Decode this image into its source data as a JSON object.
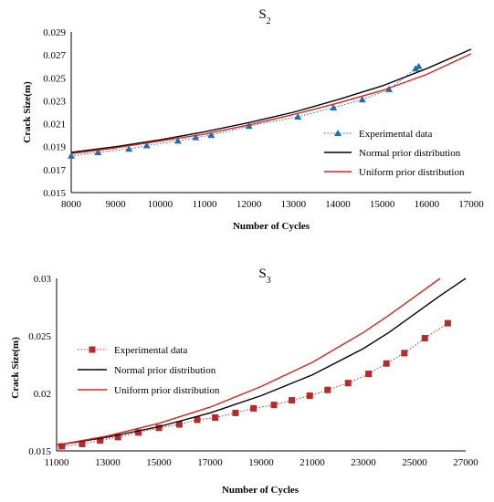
{
  "chart_data": [
    {
      "type": "line",
      "title": "S",
      "title_subscript": "2",
      "xlabel": "Number of Cycles",
      "ylabel": "Crack Size(m)",
      "xlim": [
        8000,
        17000
      ],
      "ylim": [
        0.015,
        0.029
      ],
      "xticks": [
        "8000",
        "9000",
        "10000",
        "11000",
        "12000",
        "13000",
        "14000",
        "15000",
        "16000",
        "17000"
      ],
      "yticks": [
        "0.015",
        "0.017",
        "0.019",
        "0.021",
        "0.023",
        "0.025",
        "0.027",
        "0.029"
      ],
      "legend_position": "middle-right",
      "series": [
        {
          "name": "Experimental data",
          "color": "#1f6fb5",
          "marker": "triangle",
          "line_style": "dotted",
          "x": [
            8000,
            8600,
            9300,
            9700,
            10400,
            10800,
            11150,
            12000,
            13100,
            13900,
            14550,
            15150,
            15750,
            15820
          ],
          "y": [
            0.0182,
            0.0185,
            0.0188,
            0.0191,
            0.0195,
            0.0198,
            0.02,
            0.0208,
            0.0216,
            0.0224,
            0.0231,
            0.024,
            0.0258,
            0.026
          ]
        },
        {
          "name": "Normal prior distribution",
          "color": "#000000",
          "marker": "none",
          "line_style": "solid",
          "x": [
            8000,
            9000,
            10000,
            11000,
            12000,
            13000,
            14000,
            15000,
            16000,
            17000
          ],
          "y": [
            0.0185,
            0.019,
            0.0196,
            0.0203,
            0.0211,
            0.022,
            0.0231,
            0.0243,
            0.0258,
            0.0275
          ]
        },
        {
          "name": "Uniform prior distribution",
          "color": "#e0201b",
          "marker": "none",
          "line_style": "solid",
          "x": [
            8000,
            9000,
            10000,
            11000,
            12000,
            13000,
            14000,
            15000,
            16000,
            17000
          ],
          "y": [
            0.0184,
            0.0189,
            0.0195,
            0.0201,
            0.0209,
            0.0218,
            0.0228,
            0.0239,
            0.0253,
            0.0271
          ]
        }
      ]
    },
    {
      "type": "line",
      "title": "S",
      "title_subscript": "3",
      "xlabel": "Number of Cycles",
      "ylabel": "Crack Size(m)",
      "xlim": [
        11000,
        27000
      ],
      "ylim": [
        0.015,
        0.03
      ],
      "xticks": [
        "11000",
        "13000",
        "15000",
        "17000",
        "19000",
        "21000",
        "23000",
        "25000",
        "27000"
      ],
      "yticks": [
        "0.015",
        "0.02",
        "0.025",
        "0.03"
      ],
      "legend_position": "middle-left",
      "series": [
        {
          "name": "Experimental data",
          "color": "#b52a2a",
          "marker": "square",
          "line_style": "dotted",
          "x": [
            11200,
            12000,
            12700,
            13400,
            14200,
            15000,
            15800,
            16500,
            17200,
            18000,
            18700,
            19500,
            20200,
            20900,
            21600,
            22400,
            23200,
            23900,
            24600,
            25400,
            26300
          ],
          "y": [
            0.0154,
            0.0156,
            0.0159,
            0.0162,
            0.0166,
            0.017,
            0.0173,
            0.0177,
            0.0179,
            0.0183,
            0.0187,
            0.019,
            0.0194,
            0.0198,
            0.0203,
            0.0209,
            0.0217,
            0.0226,
            0.0235,
            0.0248,
            0.0261
          ]
        },
        {
          "name": "Normal prior distribution",
          "color": "#000000",
          "marker": "none",
          "line_style": "solid",
          "x": [
            11000,
            13000,
            15000,
            17000,
            19000,
            21000,
            23000,
            24000,
            25000,
            26000,
            27000
          ],
          "y": [
            0.0155,
            0.0162,
            0.0171,
            0.0183,
            0.0198,
            0.0216,
            0.0239,
            0.0253,
            0.0269,
            0.0285,
            0.03
          ]
        },
        {
          "name": "Uniform prior distribution",
          "color": "#e0201b",
          "marker": "none",
          "line_style": "solid",
          "x": [
            11000,
            13000,
            15000,
            17000,
            19000,
            21000,
            23000,
            24000,
            25000,
            26000
          ],
          "y": [
            0.0155,
            0.0163,
            0.0174,
            0.0188,
            0.0206,
            0.0227,
            0.0253,
            0.0268,
            0.0284,
            0.03
          ]
        }
      ]
    }
  ]
}
